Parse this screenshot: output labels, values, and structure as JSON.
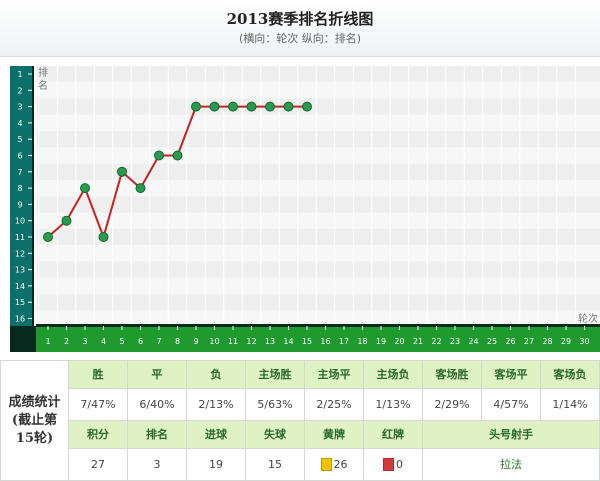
{
  "chart": {
    "title": "2013赛季排名折线图",
    "subtitle": "(横向：轮次 纵向：排名)"
  },
  "chart_data": {
    "type": "line",
    "xlabel": "轮次",
    "ylabel": "排名",
    "x": [
      1,
      2,
      3,
      4,
      5,
      6,
      7,
      8,
      9,
      10,
      11,
      12,
      13,
      14,
      15
    ],
    "y": [
      11,
      10,
      8,
      11,
      7,
      8,
      6,
      6,
      3,
      3,
      3,
      3,
      3,
      3,
      3
    ],
    "xlim": [
      1,
      30
    ],
    "ylim": [
      1,
      16
    ],
    "y_inverted": true,
    "grid": true,
    "colors": {
      "line": "#cc1f1f",
      "marker": "#2a9a4e",
      "axis": "#0b6f6a",
      "xbar": "#1e9a2e"
    }
  },
  "stats": {
    "row_label": "成绩统计\n(截止第\n15轮)",
    "headers1": [
      "胜",
      "平",
      "负",
      "主场胜",
      "主场平",
      "主场负",
      "客场胜",
      "客场平",
      "客场负"
    ],
    "values1": [
      "7/47%",
      "6/40%",
      "2/13%",
      "5/63%",
      "2/25%",
      "1/13%",
      "2/29%",
      "4/57%",
      "1/14%"
    ],
    "headers2": [
      "积分",
      "排名",
      "进球",
      "失球",
      "黄牌",
      "红牌",
      "头号射手"
    ],
    "values2": [
      "27",
      "3",
      "19",
      "15",
      "26",
      "0",
      "拉法"
    ],
    "yellow_color": "#f2c200",
    "red_color": "#d33a3a"
  }
}
